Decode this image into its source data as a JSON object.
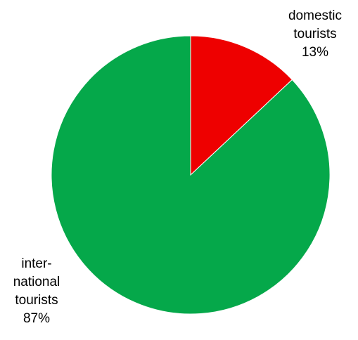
{
  "chart_data": {
    "type": "pie",
    "title": "",
    "slices": [
      {
        "label_lines": [
          "domestic",
          "tourists"
        ],
        "value_label": "13%",
        "value": 13,
        "color": "#ee0000"
      },
      {
        "label_lines": [
          "inter-",
          "national",
          "tourists"
        ],
        "value_label": "87%",
        "value": 87,
        "color": "#05a84a"
      }
    ],
    "start_angle": "12 o'clock",
    "direction": "clockwise",
    "legend": "none"
  }
}
